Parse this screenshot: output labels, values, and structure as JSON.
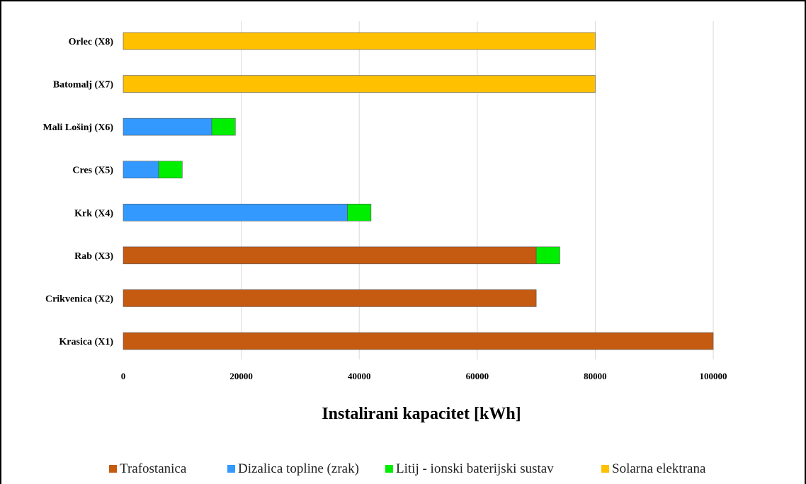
{
  "chart_data": {
    "type": "bar",
    "orientation": "horizontal",
    "stacked": true,
    "categories": [
      "Krasica (X1)",
      "Crikvenica (X2)",
      "Rab (X3)",
      "Krk (X4)",
      "Cres (X5)",
      "Mali Lošinj (X6)",
      "Batomalj (X7)",
      "Orlec (X8)"
    ],
    "series": [
      {
        "name": "Trafostanica",
        "color": "#C55A11",
        "values": [
          100000,
          70000,
          70000,
          0,
          0,
          0,
          0,
          0
        ]
      },
      {
        "name": "Dizalica topline (zrak)",
        "color": "#3399FF",
        "values": [
          0,
          0,
          0,
          38000,
          6000,
          15000,
          0,
          0
        ]
      },
      {
        "name": "Litij - ionski baterijski sustav",
        "color": "#00EE00",
        "values": [
          0,
          0,
          4000,
          4000,
          4000,
          4000,
          0,
          0
        ]
      },
      {
        "name": "Solarna elektrana",
        "color": "#FFC000",
        "values": [
          0,
          0,
          0,
          0,
          0,
          0,
          80000,
          80000
        ]
      }
    ],
    "x_ticks": [
      "0",
      "20000",
      "40000",
      "60000",
      "80000",
      "100000"
    ],
    "xlim": [
      0,
      115000
    ],
    "xlabel": "Instalirani kapacitet [kWh]",
    "title": "",
    "grid": "vertical",
    "legend_position": "bottom"
  }
}
